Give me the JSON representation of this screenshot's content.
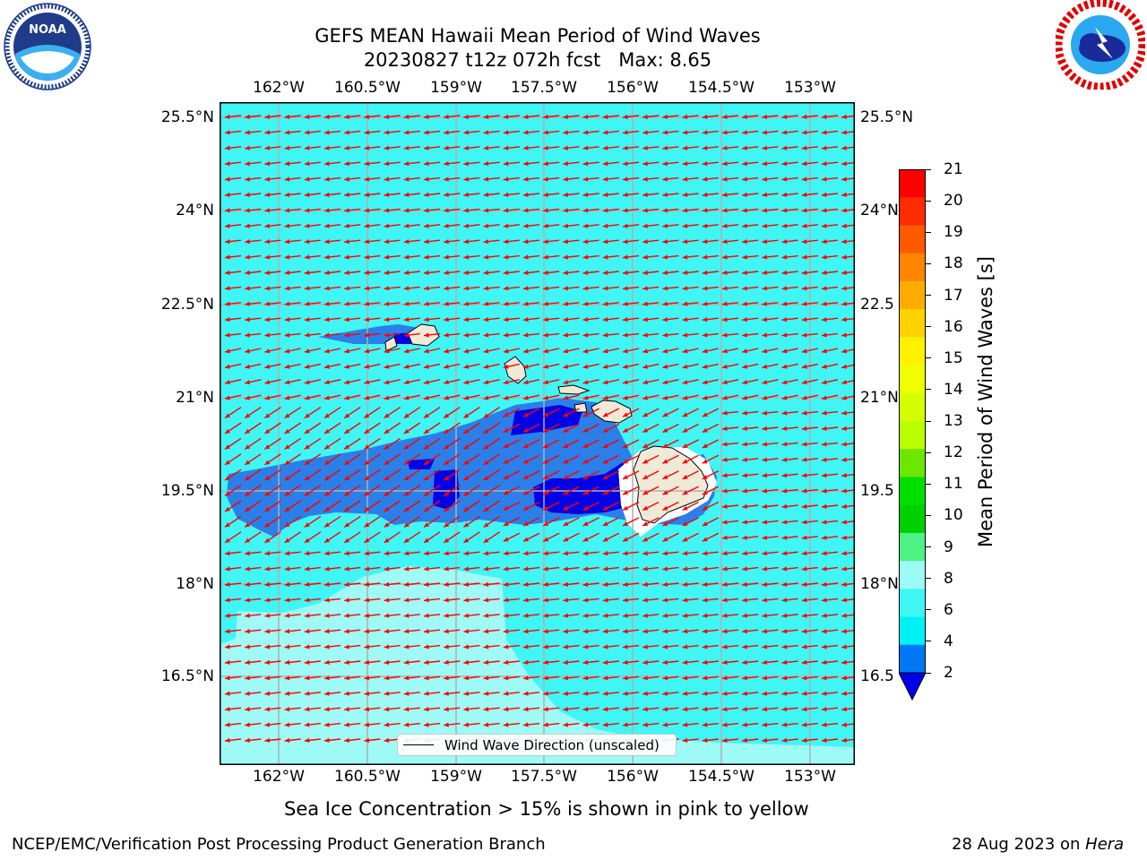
{
  "title": {
    "line1": "GEFS MEAN Hawaii Mean Period of Wind Waves",
    "line2": "20230827 t12z 072h fcst   Max: 8.65"
  },
  "map": {
    "lon_labels": [
      "162°W",
      "160.5°W",
      "159°W",
      "157.5°W",
      "156°W",
      "154.5°W",
      "153°W"
    ],
    "lat_labels_left": [
      "25.5°N",
      "24°N",
      "22.5°N",
      "21°N",
      "19.5°N",
      "18°N",
      "16.5°N"
    ],
    "lat_labels_right": [
      "25.5°N",
      "24°N",
      "22.5",
      "21°N",
      "19.5",
      "18°N",
      "16.5"
    ],
    "ocean_color": "#3ff6f5",
    "light_color": "#9dfaf5",
    "mid_blue": "#2a7fe8",
    "dark_blue": "#0000e6",
    "land_color": "#efead8",
    "arrow_color": "#ff0000",
    "arrow_direction": "west-southwest"
  },
  "legend": {
    "label": "Wind Wave Direction (unscaled)"
  },
  "colorbar": {
    "label": "Mean Period of Wind Waves [s]",
    "ticks": [
      "21",
      "20",
      "19",
      "18",
      "17",
      "16",
      "15",
      "14",
      "13",
      "12",
      "11",
      "10",
      "9",
      "8",
      "6",
      "4",
      "2"
    ],
    "colors": [
      "#ff0000",
      "#ff2b00",
      "#ff5a00",
      "#ff8400",
      "#ffac00",
      "#ffd200",
      "#fff100",
      "#f0ff00",
      "#d5ff00",
      "#b9ff00",
      "#6ce800",
      "#00e000",
      "#00d000",
      "#4cf283",
      "#9dfaf5",
      "#3ff6f5",
      "#00f1f5",
      "#0078f5"
    ],
    "extend_color": "#0000e6"
  },
  "subtitle": "Sea Ice Concentration > 15% is shown in pink to yellow",
  "footer": {
    "left": "NCEP/EMC/Verification Post Processing Product Generation Branch",
    "right_date": "28 Aug 2023 on ",
    "right_machine": "Hera"
  }
}
